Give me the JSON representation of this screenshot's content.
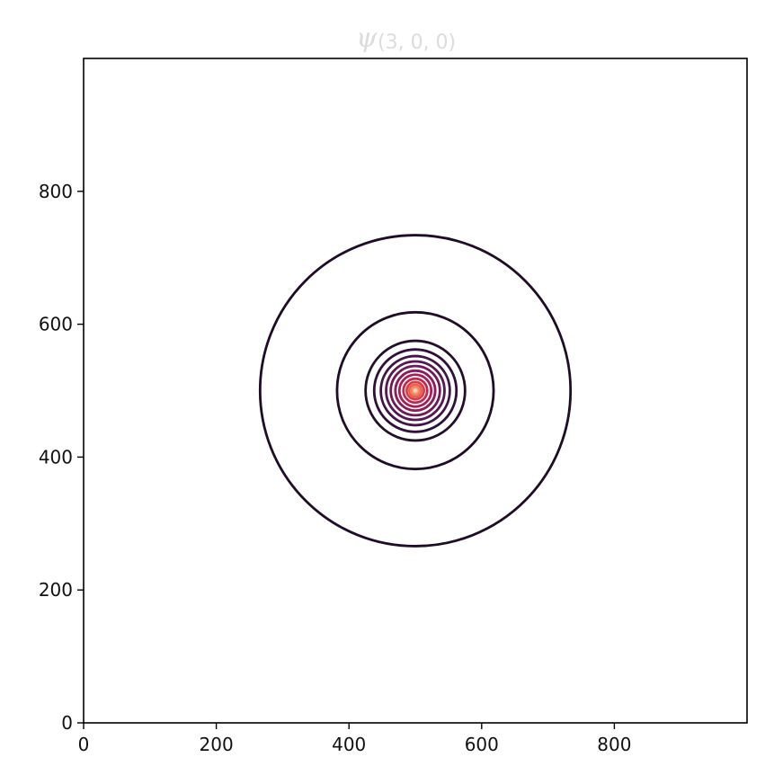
{
  "chart_data": {
    "type": "contour",
    "title": {
      "symbol": "ψ",
      "subscript": "(3, 0, 0)"
    },
    "xlabel": "",
    "ylabel": "",
    "xlim": [
      0,
      1000
    ],
    "ylim": [
      0,
      1000
    ],
    "x_ticks": [
      0,
      200,
      400,
      600,
      800
    ],
    "y_ticks": [
      0,
      200,
      400,
      600,
      800
    ],
    "grid": false,
    "center": [
      500,
      500
    ],
    "colormap": "rocket",
    "contours": [
      {
        "radius": 234,
        "color": "#1e0e25"
      },
      {
        "radius": 118,
        "color": "#1e0e25"
      },
      {
        "radius": 75,
        "color": "#220f28"
      },
      {
        "radius": 62,
        "color": "#2e1136"
      },
      {
        "radius": 52,
        "color": "#3f1544"
      },
      {
        "radius": 44,
        "color": "#561852"
      },
      {
        "radius": 37,
        "color": "#6f1a57"
      },
      {
        "radius": 30,
        "color": "#8a1d58"
      },
      {
        "radius": 24,
        "color": "#a41f55"
      },
      {
        "radius": 18,
        "color": "#be2a4f"
      },
      {
        "radius": 13,
        "color": "#d7404a"
      },
      {
        "radius": 9,
        "color": "#e85f4f"
      },
      {
        "radius": 6,
        "color": "#f08562"
      },
      {
        "radius": 3.5,
        "color": "#f5aa85"
      },
      {
        "radius": 1.5,
        "color": "#f8d0b8"
      }
    ]
  }
}
